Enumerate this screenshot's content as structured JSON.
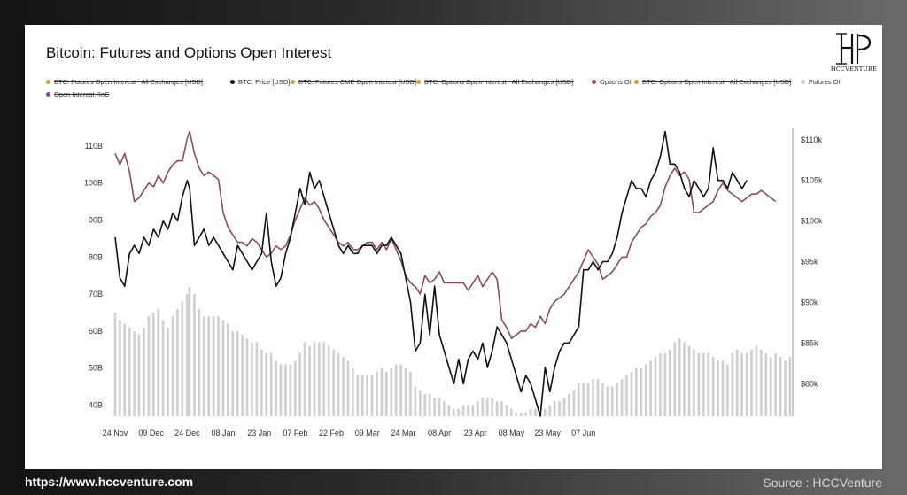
{
  "footer": {
    "url": "https://www.hccventure.com",
    "source": "Source : HCCVenture"
  },
  "logo": {
    "text": "HCCVENTURE"
  },
  "chart_data": {
    "type": "line",
    "title": "Bitcoin: Futures and Options Open Interest",
    "legend": [
      {
        "label": "BTC: Futures Open Interest - All Exchanges [USD]",
        "color": "#c8a23c",
        "active": false
      },
      {
        "label": "BTC: Price [USD]",
        "color": "#111111",
        "active": true
      },
      {
        "label": "BTC: Futures CME Open Interest [USD]",
        "color": "#c8a23c",
        "active": false
      },
      {
        "label": "BTC: Options Open Interest - All Exchanges [USD]",
        "color": "#c8a23c",
        "active": false
      },
      {
        "label": "Options OI",
        "color": "#8b4f4f",
        "active": true
      },
      {
        "label": "BTC: Options Open Interest - All Exchanges [USD]",
        "color": "#c8a23c",
        "active": false
      },
      {
        "label": "Futures OI",
        "color": "#cccccc",
        "active": true
      },
      {
        "label": "Open Interest RoC",
        "color": "#7a4fb0",
        "active": false
      }
    ],
    "x_ticks": [
      "24 Nov",
      "09 Dec",
      "24 Dec",
      "08 Jan",
      "23 Jan",
      "07 Feb",
      "22 Feb",
      "09 Mar",
      "24 Mar",
      "08 Apr",
      "23 Apr",
      "08 May",
      "23 May",
      "07 Jun"
    ],
    "left_axis": {
      "ticks": [
        "110B",
        "100B",
        "90B",
        "80B",
        "70B",
        "60B",
        "50B",
        "40B"
      ],
      "values": [
        110,
        100,
        90,
        80,
        70,
        60,
        50,
        40
      ],
      "ylim": [
        37,
        115
      ]
    },
    "right_axis": {
      "ticks": [
        "$110k",
        "$105k",
        "$100k",
        "$95k",
        "$90k",
        "$85k",
        "$80k"
      ],
      "values": [
        110,
        105,
        100,
        95,
        90,
        85,
        80
      ],
      "ylim": [
        76,
        111.5
      ]
    },
    "futures_oi_bars": [
      [
        0,
        65
      ],
      [
        2,
        63
      ],
      [
        4,
        62
      ],
      [
        6,
        61
      ],
      [
        8,
        60
      ],
      [
        10,
        59
      ],
      [
        12,
        61
      ],
      [
        14,
        64
      ],
      [
        16,
        65
      ],
      [
        18,
        66
      ],
      [
        20,
        63
      ],
      [
        22,
        61
      ],
      [
        24,
        64
      ],
      [
        26,
        66
      ],
      [
        28,
        68
      ],
      [
        30,
        70
      ],
      [
        31,
        72
      ],
      [
        33,
        70
      ],
      [
        35,
        66
      ],
      [
        37,
        64
      ],
      [
        39,
        64
      ],
      [
        41,
        64
      ],
      [
        43,
        64
      ],
      [
        45,
        63
      ],
      [
        47,
        62
      ],
      [
        49,
        60
      ],
      [
        51,
        60
      ],
      [
        53,
        59
      ],
      [
        55,
        58
      ],
      [
        57,
        57
      ],
      [
        59,
        57
      ],
      [
        61,
        55
      ],
      [
        63,
        54
      ],
      [
        65,
        54
      ],
      [
        67,
        52
      ],
      [
        69,
        51
      ],
      [
        71,
        51
      ],
      [
        73,
        51
      ],
      [
        75,
        52
      ],
      [
        77,
        54
      ],
      [
        79,
        57
      ],
      [
        81,
        56
      ],
      [
        83,
        57
      ],
      [
        85,
        57
      ],
      [
        87,
        57
      ],
      [
        89,
        56
      ],
      [
        91,
        55
      ],
      [
        93,
        54
      ],
      [
        95,
        53
      ],
      [
        97,
        52
      ],
      [
        99,
        50
      ],
      [
        101,
        48
      ],
      [
        103,
        48
      ],
      [
        105,
        48
      ],
      [
        107,
        48
      ],
      [
        109,
        49
      ],
      [
        111,
        50
      ],
      [
        113,
        49
      ],
      [
        115,
        50
      ],
      [
        117,
        51
      ],
      [
        119,
        51
      ],
      [
        121,
        50
      ],
      [
        123,
        49
      ],
      [
        125,
        45
      ],
      [
        127,
        44
      ],
      [
        129,
        43
      ],
      [
        131,
        43
      ],
      [
        133,
        42
      ],
      [
        135,
        42
      ],
      [
        137,
        41
      ],
      [
        139,
        40
      ],
      [
        141,
        39
      ],
      [
        143,
        39
      ],
      [
        145,
        40
      ],
      [
        147,
        40
      ],
      [
        149,
        40
      ],
      [
        151,
        41
      ],
      [
        153,
        42
      ],
      [
        155,
        42
      ],
      [
        157,
        42
      ],
      [
        159,
        41
      ],
      [
        161,
        41
      ],
      [
        163,
        40
      ],
      [
        165,
        39
      ],
      [
        167,
        38
      ],
      [
        169,
        38
      ],
      [
        171,
        38
      ],
      [
        173,
        39
      ],
      [
        175,
        39
      ],
      [
        177,
        38
      ],
      [
        179,
        39
      ],
      [
        181,
        40
      ],
      [
        183,
        41
      ],
      [
        185,
        41
      ],
      [
        187,
        42
      ],
      [
        189,
        43
      ],
      [
        191,
        44
      ],
      [
        193,
        46
      ],
      [
        195,
        46
      ],
      [
        197,
        46
      ],
      [
        199,
        47
      ],
      [
        201,
        47
      ],
      [
        203,
        46
      ],
      [
        205,
        45
      ],
      [
        207,
        45
      ],
      [
        209,
        46
      ],
      [
        211,
        47
      ],
      [
        213,
        48
      ],
      [
        215,
        49
      ],
      [
        217,
        50
      ],
      [
        219,
        50
      ],
      [
        221,
        51
      ],
      [
        223,
        52
      ],
      [
        225,
        53
      ],
      [
        227,
        54
      ],
      [
        229,
        54
      ],
      [
        231,
        55
      ],
      [
        233,
        57
      ],
      [
        235,
        58
      ],
      [
        237,
        57
      ],
      [
        239,
        56
      ],
      [
        241,
        55
      ],
      [
        243,
        54
      ],
      [
        245,
        54
      ],
      [
        247,
        54
      ],
      [
        249,
        53
      ],
      [
        251,
        52
      ],
      [
        253,
        52
      ],
      [
        255,
        51
      ],
      [
        257,
        54
      ],
      [
        259,
        55
      ],
      [
        261,
        54
      ],
      [
        263,
        54
      ],
      [
        265,
        55
      ],
      [
        267,
        56
      ],
      [
        269,
        55
      ],
      [
        271,
        54
      ],
      [
        273,
        53
      ],
      [
        275,
        54
      ],
      [
        277,
        53
      ],
      [
        279,
        52
      ],
      [
        281,
        53
      ]
    ],
    "options_oi": [
      [
        0,
        108
      ],
      [
        2,
        105
      ],
      [
        4,
        108
      ],
      [
        6,
        103
      ],
      [
        8,
        95
      ],
      [
        10,
        96
      ],
      [
        12,
        98
      ],
      [
        14,
        100
      ],
      [
        16,
        99
      ],
      [
        18,
        102
      ],
      [
        20,
        100
      ],
      [
        22,
        103
      ],
      [
        24,
        105
      ],
      [
        26,
        106
      ],
      [
        28,
        106
      ],
      [
        30,
        112
      ],
      [
        31,
        114
      ],
      [
        33,
        108
      ],
      [
        35,
        104
      ],
      [
        37,
        102
      ],
      [
        39,
        103
      ],
      [
        41,
        102
      ],
      [
        43,
        101
      ],
      [
        45,
        92
      ],
      [
        47,
        88
      ],
      [
        49,
        86
      ],
      [
        51,
        84
      ],
      [
        53,
        84
      ],
      [
        55,
        83
      ],
      [
        57,
        85
      ],
      [
        59,
        84
      ],
      [
        61,
        82
      ],
      [
        63,
        80
      ],
      [
        65,
        81
      ],
      [
        67,
        83
      ],
      [
        69,
        82
      ],
      [
        71,
        83
      ],
      [
        73,
        86
      ],
      [
        75,
        90
      ],
      [
        77,
        93
      ],
      [
        79,
        96
      ],
      [
        81,
        94
      ],
      [
        83,
        95
      ],
      [
        85,
        93
      ],
      [
        87,
        90
      ],
      [
        89,
        88
      ],
      [
        91,
        86
      ],
      [
        93,
        84
      ],
      [
        95,
        83
      ],
      [
        97,
        84
      ],
      [
        99,
        82
      ],
      [
        101,
        82
      ],
      [
        103,
        83
      ],
      [
        105,
        84
      ],
      [
        107,
        84
      ],
      [
        109,
        82
      ],
      [
        111,
        84
      ],
      [
        113,
        82
      ],
      [
        115,
        85
      ],
      [
        117,
        82
      ],
      [
        119,
        79
      ],
      [
        121,
        75
      ],
      [
        123,
        73
      ],
      [
        125,
        72
      ],
      [
        127,
        70
      ],
      [
        129,
        75
      ],
      [
        131,
        73
      ],
      [
        133,
        74
      ],
      [
        135,
        76
      ],
      [
        137,
        73
      ],
      [
        139,
        73
      ],
      [
        141,
        73
      ],
      [
        143,
        73
      ],
      [
        145,
        73
      ],
      [
        147,
        71
      ],
      [
        149,
        73
      ],
      [
        151,
        75
      ],
      [
        153,
        72
      ],
      [
        155,
        74
      ],
      [
        157,
        76
      ],
      [
        159,
        74
      ],
      [
        161,
        63
      ],
      [
        163,
        61
      ],
      [
        165,
        58
      ],
      [
        167,
        59
      ],
      [
        169,
        60
      ],
      [
        171,
        60
      ],
      [
        173,
        62
      ],
      [
        175,
        61
      ],
      [
        177,
        64
      ],
      [
        179,
        62
      ],
      [
        181,
        66
      ],
      [
        183,
        68
      ],
      [
        185,
        69
      ],
      [
        187,
        70
      ],
      [
        189,
        72
      ],
      [
        191,
        74
      ],
      [
        193,
        76
      ],
      [
        195,
        79
      ],
      [
        197,
        82
      ],
      [
        199,
        80
      ],
      [
        201,
        78
      ],
      [
        203,
        74
      ],
      [
        205,
        75
      ],
      [
        207,
        76
      ],
      [
        209,
        78
      ],
      [
        211,
        80
      ],
      [
        213,
        80
      ],
      [
        215,
        84
      ],
      [
        217,
        86
      ],
      [
        219,
        88
      ],
      [
        221,
        89
      ],
      [
        223,
        91
      ],
      [
        225,
        92
      ],
      [
        227,
        94
      ],
      [
        229,
        99
      ],
      [
        231,
        102
      ],
      [
        233,
        104
      ],
      [
        235,
        102
      ],
      [
        237,
        103
      ],
      [
        239,
        101
      ],
      [
        241,
        92
      ],
      [
        243,
        92
      ],
      [
        245,
        93
      ],
      [
        247,
        94
      ],
      [
        249,
        95
      ],
      [
        251,
        98
      ],
      [
        253,
        100
      ],
      [
        255,
        98
      ],
      [
        257,
        97
      ],
      [
        259,
        96
      ],
      [
        261,
        95
      ],
      [
        263,
        96
      ],
      [
        265,
        97
      ],
      [
        267,
        97
      ],
      [
        269,
        98
      ],
      [
        271,
        97
      ],
      [
        273,
        96
      ],
      [
        275,
        95
      ]
    ],
    "btc_price": [
      [
        0,
        98
      ],
      [
        2,
        93
      ],
      [
        4,
        92
      ],
      [
        6,
        96
      ],
      [
        8,
        97
      ],
      [
        10,
        96
      ],
      [
        12,
        98
      ],
      [
        14,
        97
      ],
      [
        16,
        99
      ],
      [
        18,
        98
      ],
      [
        20,
        100
      ],
      [
        22,
        99
      ],
      [
        24,
        101
      ],
      [
        26,
        100
      ],
      [
        28,
        103
      ],
      [
        30,
        105
      ],
      [
        31,
        104
      ],
      [
        33,
        97
      ],
      [
        35,
        98
      ],
      [
        37,
        99
      ],
      [
        39,
        97
      ],
      [
        41,
        98
      ],
      [
        43,
        97
      ],
      [
        45,
        96
      ],
      [
        47,
        95
      ],
      [
        49,
        94
      ],
      [
        51,
        97
      ],
      [
        53,
        96
      ],
      [
        55,
        95
      ],
      [
        57,
        94
      ],
      [
        59,
        95
      ],
      [
        61,
        96
      ],
      [
        63,
        101
      ],
      [
        65,
        95
      ],
      [
        67,
        92
      ],
      [
        69,
        93
      ],
      [
        71,
        96
      ],
      [
        73,
        98
      ],
      [
        75,
        101
      ],
      [
        77,
        104
      ],
      [
        79,
        102
      ],
      [
        81,
        106
      ],
      [
        83,
        104
      ],
      [
        85,
        105
      ],
      [
        87,
        103
      ],
      [
        89,
        101
      ],
      [
        91,
        99
      ],
      [
        93,
        97
      ],
      [
        95,
        96
      ],
      [
        97,
        97
      ],
      [
        99,
        96
      ],
      [
        101,
        96
      ],
      [
        103,
        97
      ],
      [
        105,
        97
      ],
      [
        107,
        97
      ],
      [
        109,
        96
      ],
      [
        111,
        97
      ],
      [
        113,
        97
      ],
      [
        115,
        98
      ],
      [
        117,
        97
      ],
      [
        119,
        96
      ],
      [
        121,
        93
      ],
      [
        123,
        90
      ],
      [
        125,
        84
      ],
      [
        127,
        85
      ],
      [
        129,
        91
      ],
      [
        131,
        86
      ],
      [
        133,
        92
      ],
      [
        135,
        86
      ],
      [
        137,
        84
      ],
      [
        139,
        82
      ],
      [
        141,
        80
      ],
      [
        143,
        83
      ],
      [
        145,
        80
      ],
      [
        147,
        83
      ],
      [
        149,
        84
      ],
      [
        151,
        83
      ],
      [
        153,
        85
      ],
      [
        155,
        82
      ],
      [
        157,
        84
      ],
      [
        159,
        87
      ],
      [
        161,
        86
      ],
      [
        163,
        85
      ],
      [
        165,
        83
      ],
      [
        167,
        81
      ],
      [
        169,
        79
      ],
      [
        171,
        81
      ],
      [
        173,
        80
      ],
      [
        175,
        78
      ],
      [
        177,
        76
      ],
      [
        179,
        82
      ],
      [
        181,
        79
      ],
      [
        183,
        82
      ],
      [
        185,
        84
      ],
      [
        187,
        85
      ],
      [
        189,
        85
      ],
      [
        191,
        86
      ],
      [
        193,
        87
      ],
      [
        195,
        94
      ],
      [
        197,
        94
      ],
      [
        199,
        95
      ],
      [
        201,
        94
      ],
      [
        203,
        95
      ],
      [
        205,
        95
      ],
      [
        207,
        96
      ],
      [
        209,
        98
      ],
      [
        211,
        101
      ],
      [
        213,
        103
      ],
      [
        215,
        105
      ],
      [
        217,
        104
      ],
      [
        219,
        104
      ],
      [
        221,
        103
      ],
      [
        223,
        105
      ],
      [
        225,
        106
      ],
      [
        227,
        108
      ],
      [
        229,
        111
      ],
      [
        231,
        107
      ],
      [
        233,
        107
      ],
      [
        235,
        106
      ],
      [
        237,
        104
      ],
      [
        239,
        103
      ],
      [
        241,
        105
      ],
      [
        243,
        104
      ],
      [
        245,
        103
      ],
      [
        247,
        104
      ],
      [
        249,
        109
      ],
      [
        251,
        105
      ],
      [
        253,
        105
      ],
      [
        255,
        104
      ],
      [
        257,
        106
      ],
      [
        259,
        105
      ],
      [
        261,
        104
      ],
      [
        263,
        105
      ]
    ]
  }
}
